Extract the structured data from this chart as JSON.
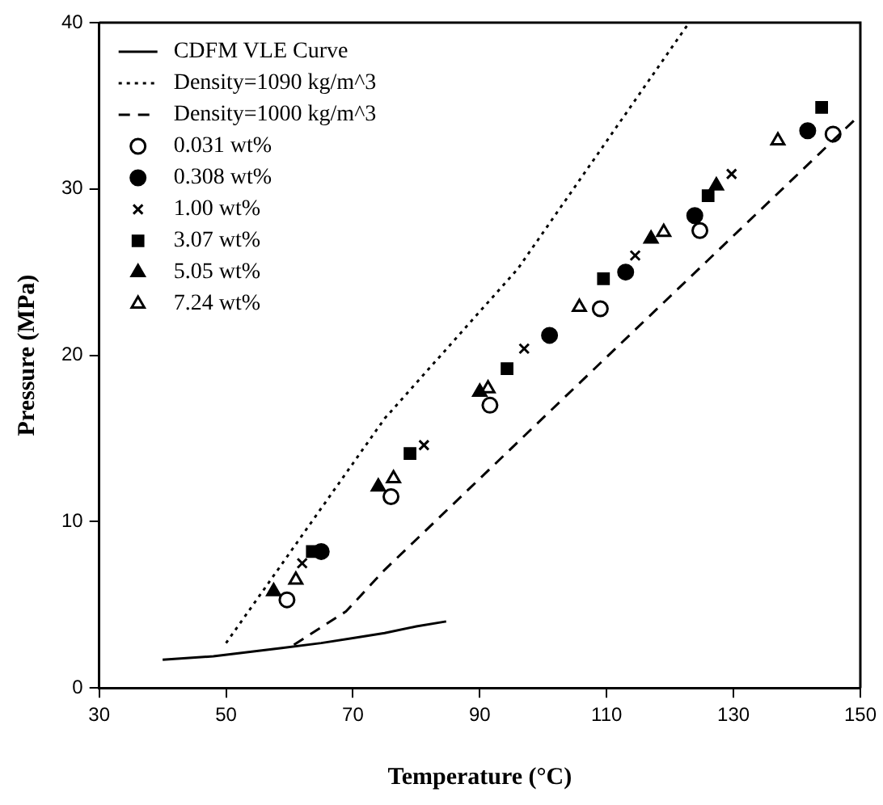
{
  "chart_data": {
    "type": "scatter",
    "xlabel": "Temperature (°C)",
    "ylabel": "Pressure (MPa)",
    "xlim": [
      30,
      150
    ],
    "xticks": [
      30,
      50,
      70,
      90,
      110,
      130,
      150
    ],
    "ylim": [
      0,
      40
    ],
    "yticks": [
      0,
      10,
      20,
      30,
      40
    ],
    "grid": false,
    "legend": "top left",
    "series": [
      {
        "name": "CDFM VLE Curve",
        "type": "line",
        "color": "#000000",
        "line_style": "solid",
        "marker": "none",
        "x": [
          40,
          48,
          58.8,
          65,
          70,
          75,
          80,
          84.7
        ],
        "values": [
          1.7,
          1.9,
          2.4,
          2.7,
          3.0,
          3.3,
          3.7,
          4.0
        ]
      },
      {
        "name": "Density=1090 kg/m^3",
        "type": "line",
        "color": "#000000",
        "line_style": "dotted",
        "marker": "none",
        "x": [
          50,
          75,
          96,
          123
        ],
        "values": [
          2.7,
          16.2,
          25.2,
          40
        ]
      },
      {
        "name": "Density=1000 kg/m^3",
        "type": "line",
        "color": "#000000",
        "line_style": "dashed",
        "marker": "none",
        "x": [
          60.7,
          68.9,
          75,
          100.7,
          149.5
        ],
        "values": [
          2.6,
          4.6,
          7.1,
          16.5,
          34.3
        ]
      },
      {
        "name": "0.031 wt%",
        "color": "#ffffff",
        "marker": "circle",
        "x": [
          59.6,
          76,
          91.6,
          109,
          124.7,
          145.7
        ],
        "values": [
          5.3,
          11.5,
          17.0,
          22.8,
          27.5,
          33.3
        ]
      },
      {
        "name": "0.308 wt%",
        "color": "#000000",
        "marker": "circle",
        "x": [
          65,
          101,
          113,
          123.9,
          141.7
        ],
        "values": [
          8.2,
          21.2,
          25,
          28.4,
          33.5
        ]
      },
      {
        "name": "1.00 wt%",
        "color": "#000000",
        "marker": "cross",
        "x": [
          62,
          81.2,
          97,
          114.5,
          129.7
        ],
        "values": [
          7.5,
          14.6,
          20.4,
          26,
          30.9
        ]
      },
      {
        "name": "3.07 wt%",
        "color": "#000000",
        "marker": "square",
        "x": [
          63.6,
          79,
          94.3,
          109.5,
          126,
          143.9
        ],
        "values": [
          8.2,
          14.1,
          19.2,
          24.6,
          29.6,
          34.9
        ]
      },
      {
        "name": "5.05 wt%",
        "color": "#000000",
        "marker": "triangle",
        "x": [
          57.5,
          74,
          90,
          117,
          127.3
        ],
        "values": [
          5.8,
          12.1,
          17.8,
          27,
          30.2
        ]
      },
      {
        "name": "7.24 wt%",
        "color": "#ffffff",
        "marker": "triangle",
        "x": [
          61,
          76.4,
          91.3,
          105.7,
          119,
          137
        ],
        "values": [
          6.5,
          12.6,
          18,
          22.9,
          27.4,
          32.9
        ]
      }
    ]
  }
}
